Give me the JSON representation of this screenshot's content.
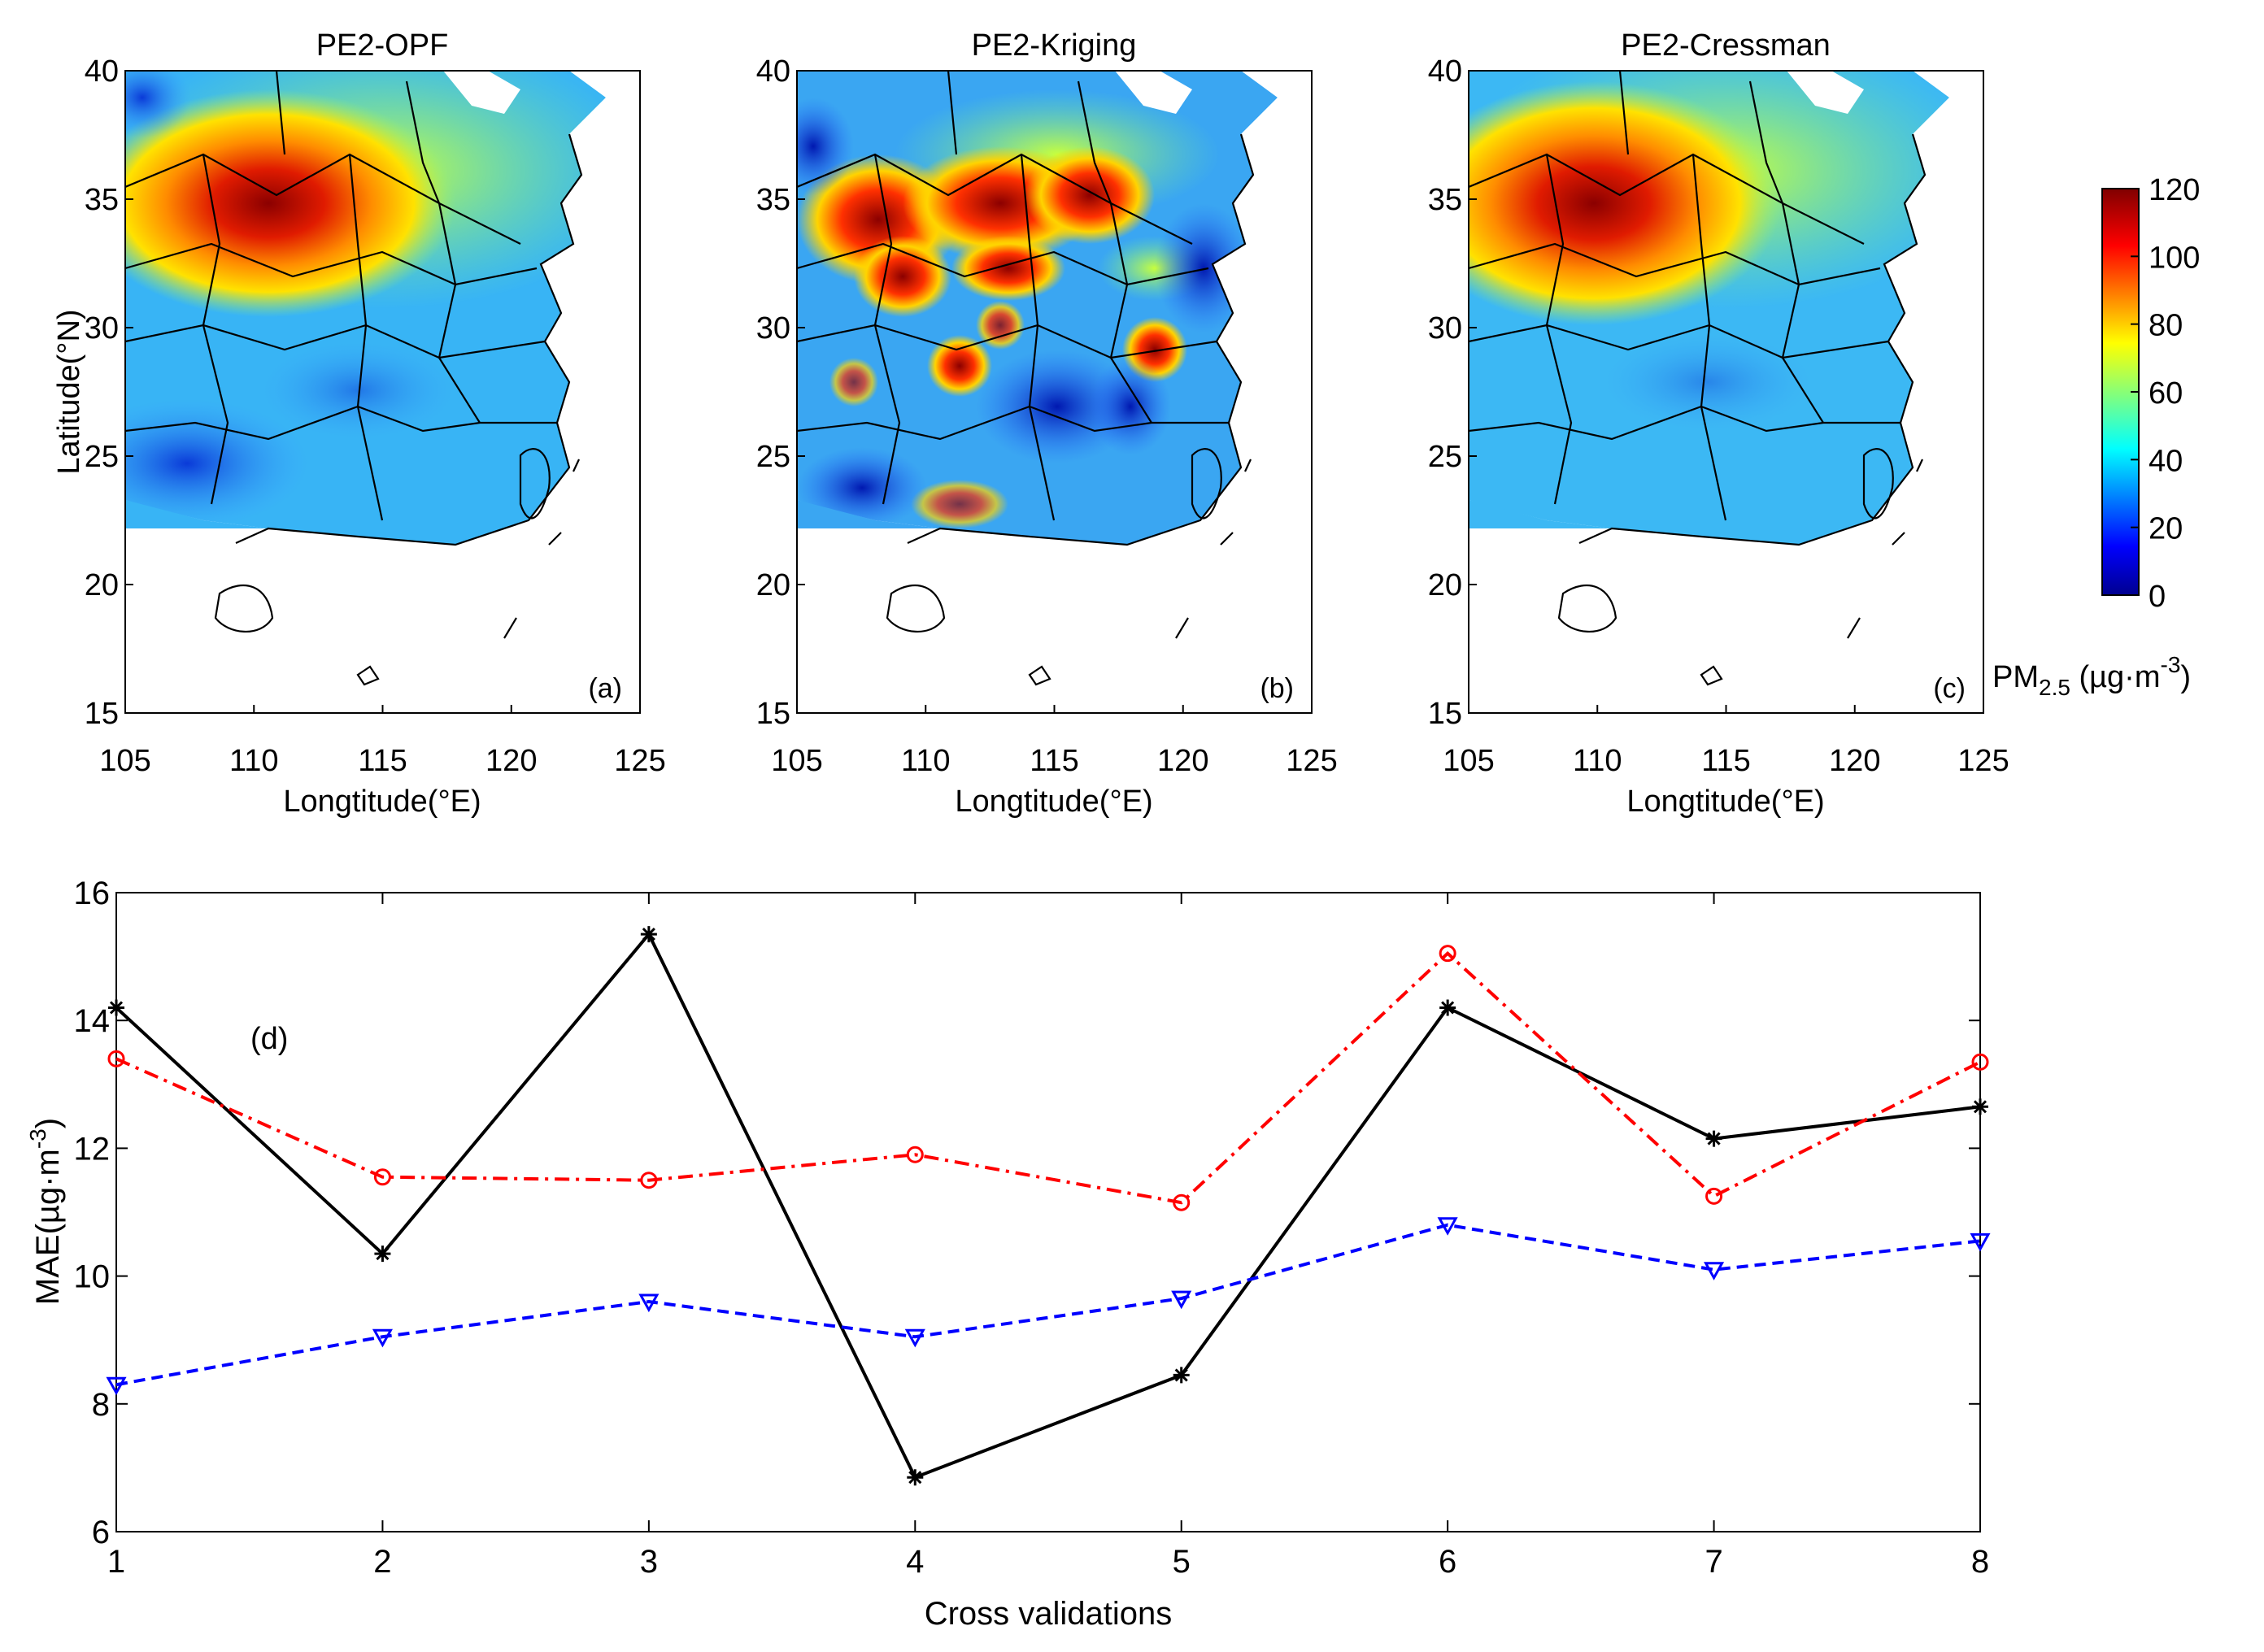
{
  "maps": [
    {
      "title": "PE2-OPF",
      "panel_label": "(a)",
      "ylabel": "Latitude(°N)",
      "xlabel": "Longtitude(°E)"
    },
    {
      "title": "PE2-Kriging",
      "panel_label": "(b)",
      "ylabel": "",
      "xlabel": "Longtitude(°E)"
    },
    {
      "title": "PE2-Cressman",
      "panel_label": "(c)",
      "ylabel": "",
      "xlabel": "Longtitude(°E)"
    }
  ],
  "map_axes": {
    "xticks": [
      "105",
      "110",
      "115",
      "120",
      "125"
    ],
    "yticks": [
      "15",
      "20",
      "25",
      "30",
      "35",
      "40"
    ]
  },
  "colorbar": {
    "ticks": [
      "0",
      "20",
      "40",
      "60",
      "80",
      "100",
      "120"
    ],
    "unit_main": "PM",
    "unit_sub": "2.5",
    "unit_rest": " (µg·m",
    "unit_sup": "-3",
    "unit_close": ")",
    "colormap": "jet"
  },
  "line_chart": {
    "panel_label": "(d)",
    "xlabel": "Cross validations",
    "ylabel_main": "MAE(µg·m",
    "ylabel_sup": "-3",
    "ylabel_close": ")",
    "xticks": [
      "1",
      "2",
      "3",
      "4",
      "5",
      "6",
      "7",
      "8"
    ],
    "yticks": [
      "6",
      "8",
      "10",
      "12",
      "14",
      "16"
    ]
  },
  "chart_data": {
    "type": "line",
    "x": [
      1,
      2,
      3,
      4,
      5,
      6,
      7,
      8
    ],
    "xlim": [
      1,
      8
    ],
    "ylim": [
      6,
      16
    ],
    "series": [
      {
        "color": "#000000",
        "marker": "asterisk",
        "style": "solid",
        "values": [
          14.2,
          10.35,
          15.35,
          6.85,
          8.45,
          14.2,
          12.15,
          12.65
        ]
      },
      {
        "color": "#ff0000",
        "marker": "circle",
        "style": "dashdot",
        "values": [
          13.4,
          11.55,
          11.5,
          11.9,
          11.15,
          15.05,
          11.25,
          13.35
        ]
      },
      {
        "color": "#0000ff",
        "marker": "triangle-down",
        "style": "dashed",
        "values": [
          8.3,
          9.05,
          9.6,
          9.05,
          9.65,
          10.8,
          10.1,
          10.55
        ]
      }
    ]
  }
}
